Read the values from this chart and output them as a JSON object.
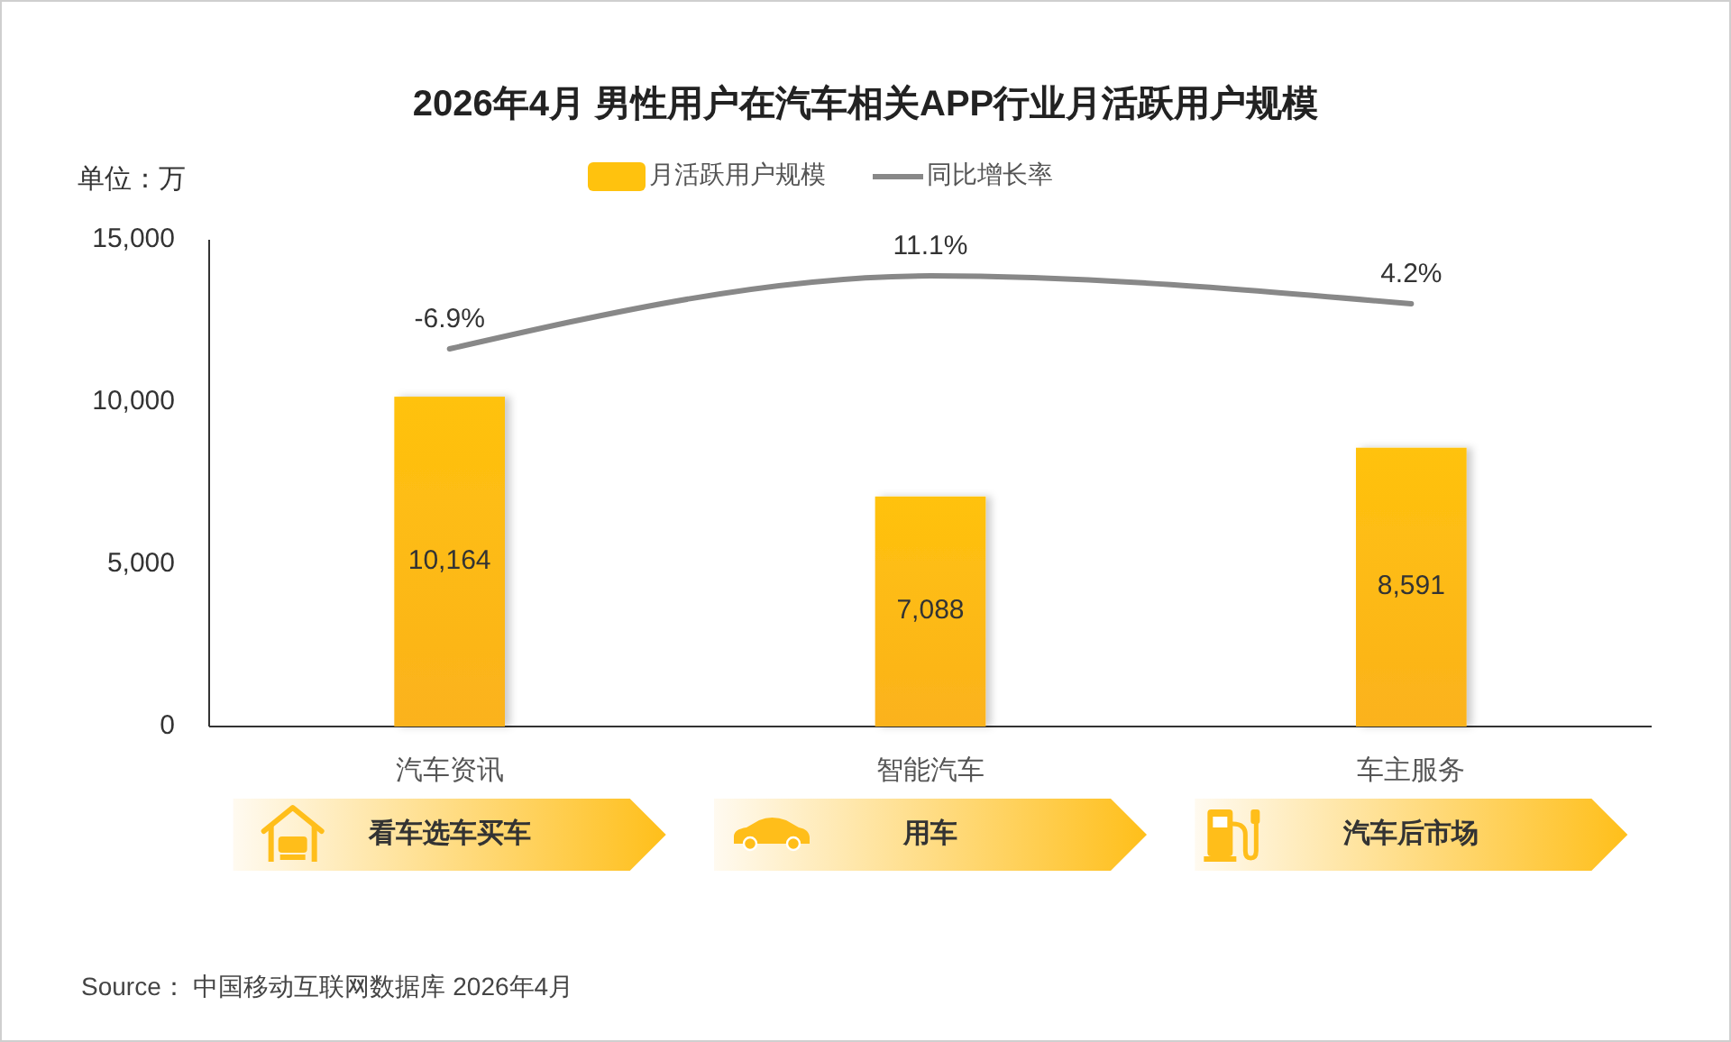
{
  "chart_data": {
    "type": "bar",
    "title": "2026年4月 男性用户在汽车相关APP行业月活跃用户规模",
    "ylabel": "单位：万",
    "categories": [
      "汽车资讯",
      "智能汽车",
      "车主服务"
    ],
    "series": [
      {
        "name": "月活跃用户规模",
        "color": "#ffc20e",
        "values": [
          10164,
          7088,
          8591
        ],
        "value_labels": [
          "10,164",
          "7,088",
          "8,591"
        ]
      },
      {
        "name": "同比增长率",
        "type": "line",
        "axis": "y2",
        "color": "#888888",
        "values": [
          -6.9,
          11.1,
          4.2
        ],
        "value_labels": [
          "-6.9%",
          "11.1%",
          "4.2%"
        ]
      }
    ],
    "ylim": [
      0,
      15000
    ],
    "yticks": [
      0,
      {
        "value": 5000,
        "label": "5,000"
      },
      {
        "value": 10000,
        "label": "10,000"
      },
      {
        "value": 15000,
        "label": "15,000"
      }
    ],
    "y2lim": [
      -100,
      20
    ],
    "legend": "top",
    "marker": "none",
    "line_style": "solid",
    "annotations": [
      "看车选车买车",
      "用车",
      "汽车后市场",
      "Source： 中国移动互联网数据库 2026年4月"
    ]
  }
}
